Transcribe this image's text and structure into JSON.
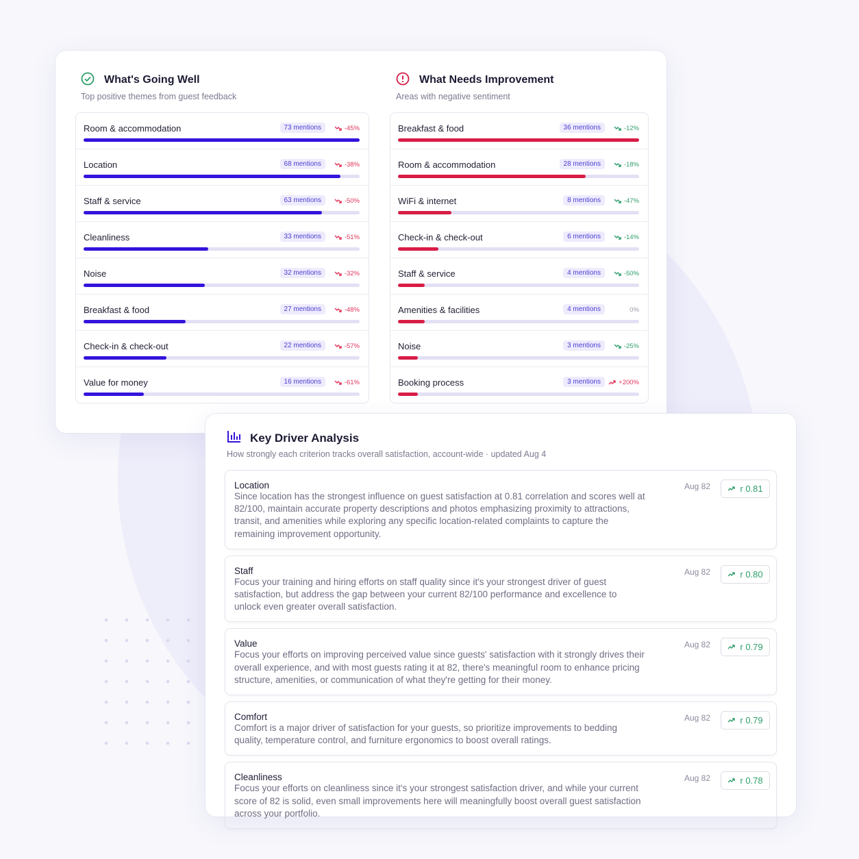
{
  "going_well": {
    "title": "What's Going Well",
    "subtitle": "Top positive themes from guest feedback",
    "bar_color": "#3414dc",
    "down_color": "#e0345a",
    "up_color": "#e0345a",
    "items": [
      {
        "name": "Room & accommodation",
        "mentions": 73,
        "mentions_label": "73 mentions",
        "change": "-45%"
      },
      {
        "name": "Location",
        "mentions": 68,
        "mentions_label": "68 mentions",
        "change": "-38%"
      },
      {
        "name": "Staff & service",
        "mentions": 63,
        "mentions_label": "63 mentions",
        "change": "-50%"
      },
      {
        "name": "Cleanliness",
        "mentions": 33,
        "mentions_label": "33 mentions",
        "change": "-51%"
      },
      {
        "name": "Noise",
        "mentions": 32,
        "mentions_label": "32 mentions",
        "change": "-32%"
      },
      {
        "name": "Breakfast & food",
        "mentions": 27,
        "mentions_label": "27 mentions",
        "change": "-48%"
      },
      {
        "name": "Check-in & check-out",
        "mentions": 22,
        "mentions_label": "22 mentions",
        "change": "-57%"
      },
      {
        "name": "Value for money",
        "mentions": 16,
        "mentions_label": "16 mentions",
        "change": "-61%"
      }
    ]
  },
  "needs_improvement": {
    "title": "What Needs Improvement",
    "subtitle": "Areas with negative sentiment",
    "bar_color": "#d81c46",
    "down_color": "#2f9e6a",
    "up_color": "#e0345a",
    "items": [
      {
        "name": "Breakfast & food",
        "mentions": 36,
        "mentions_label": "36 mentions",
        "change": "-12%"
      },
      {
        "name": "Room & accommodation",
        "mentions": 28,
        "mentions_label": "28 mentions",
        "change": "-18%"
      },
      {
        "name": "WiFi & internet",
        "mentions": 8,
        "mentions_label": "8 mentions",
        "change": "-47%"
      },
      {
        "name": "Check-in & check-out",
        "mentions": 6,
        "mentions_label": "6 mentions",
        "change": "-14%"
      },
      {
        "name": "Staff & service",
        "mentions": 4,
        "mentions_label": "4 mentions",
        "change": "-50%"
      },
      {
        "name": "Amenities & facilities",
        "mentions": 4,
        "mentions_label": "4 mentions",
        "change": "0%"
      },
      {
        "name": "Noise",
        "mentions": 3,
        "mentions_label": "3 mentions",
        "change": "-25%"
      },
      {
        "name": "Booking process",
        "mentions": 3,
        "mentions_label": "3 mentions",
        "change": "+200%"
      }
    ]
  },
  "key_driver": {
    "title": "Key Driver Analysis",
    "subtitle": "How strongly each criterion tracks overall satisfaction, account-wide · updated Aug 4",
    "items": [
      {
        "name": "Location",
        "text": "Since location has the strongest influence on guest satisfaction at 0.81 correlation and scores well at 82/100, maintain accurate property descriptions and photos emphasizing proximity to attractions, transit, and amenities while exploring any specific location-related complaints to capture the remaining improvement opportunity.",
        "date": "Aug 82",
        "correlation": "r 0.81"
      },
      {
        "name": "Staff",
        "text": "Focus your training and hiring efforts on staff quality since it's your strongest driver of guest satisfaction, but address the gap between your current 82/100 performance and excellence to unlock even greater overall satisfaction.",
        "date": "Aug 82",
        "correlation": "r 0.80"
      },
      {
        "name": "Value",
        "text": "Focus your efforts on improving perceived value since guests' satisfaction with it strongly drives their overall experience, and with most guests rating it at 82, there's meaningful room to enhance pricing structure, amenities, or communication of what they're getting for their money.",
        "date": "Aug 82",
        "correlation": "r 0.79"
      },
      {
        "name": "Comfort",
        "text": "Comfort is a major driver of satisfaction for your guests, so prioritize improvements to bedding quality, temperature control, and furniture ergonomics to boost overall ratings.",
        "date": "Aug 82",
        "correlation": "r 0.79"
      },
      {
        "name": "Cleanliness",
        "text": "Focus your efforts on cleanliness since it's your strongest satisfaction driver, and while your current score of 82 is solid, even small improvements here will meaningfully boost overall guest satisfaction across your portfolio.",
        "date": "Aug 82",
        "correlation": "r 0.78"
      }
    ]
  }
}
